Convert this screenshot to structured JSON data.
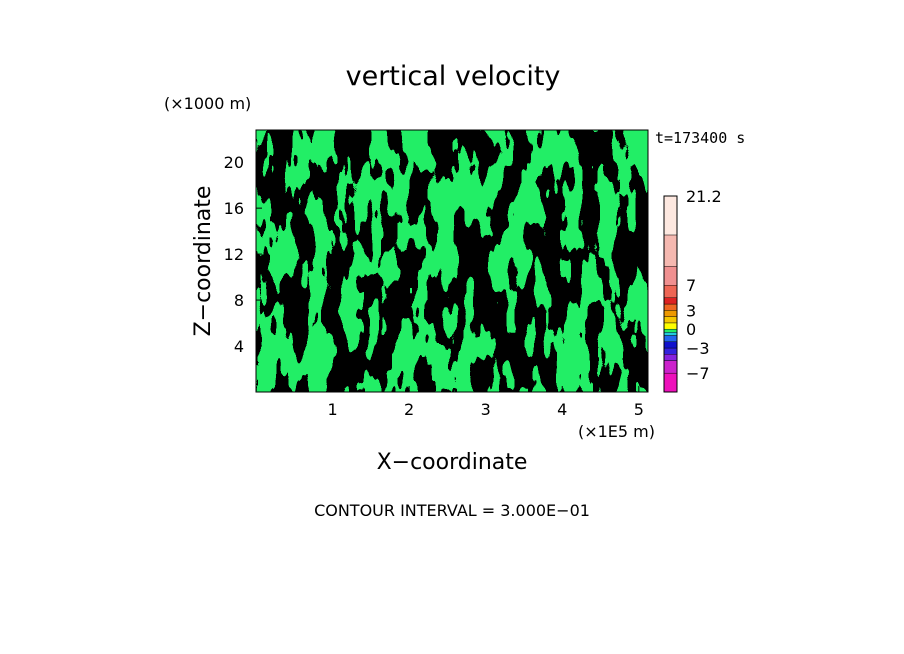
{
  "chart_data": {
    "type": "heatmap",
    "title": "vertical velocity",
    "xlabel": "X−coordinate",
    "ylabel": "Z−coordinate",
    "x_unit_label": "(×1E5 m)",
    "y_unit_label": "(×1000 m)",
    "time_label": "t=173400 s",
    "contour_interval_label": "CONTOUR INTERVAL = 3.000E−01",
    "xlim": [
      0,
      5.12
    ],
    "ylim": [
      0,
      22.8
    ],
    "x_ticks": [
      1,
      2,
      3,
      4,
      5
    ],
    "x_tick_labels": [
      "1",
      "2",
      "3",
      "4",
      "5"
    ],
    "y_ticks": [
      4,
      8,
      12,
      16,
      20
    ],
    "y_tick_labels": [
      "4",
      "8",
      "12",
      "16",
      "20"
    ],
    "field_colors": {
      "positive": "#ffff00",
      "negative": "#22ee66"
    },
    "colorbar": {
      "bands": [
        {
          "from": -10.0,
          "to": -7.0,
          "color": "#ee11bb"
        },
        {
          "from": -7.0,
          "to": -5.0,
          "color": "#cc22cc"
        },
        {
          "from": -5.0,
          "to": -4.0,
          "color": "#8822dd"
        },
        {
          "from": -4.0,
          "to": -3.0,
          "color": "#3322dd"
        },
        {
          "from": -3.0,
          "to": -2.0,
          "color": "#1111cc"
        },
        {
          "from": -2.0,
          "to": -1.0,
          "color": "#2266ee"
        },
        {
          "from": -1.0,
          "to": -0.5,
          "color": "#22ccdd"
        },
        {
          "from": -0.5,
          "to": 0.0,
          "color": "#22ee66"
        },
        {
          "from": 0.0,
          "to": 1.0,
          "color": "#ffff00"
        },
        {
          "from": 1.0,
          "to": 2.0,
          "color": "#f5c800"
        },
        {
          "from": 2.0,
          "to": 3.0,
          "color": "#ee9900"
        },
        {
          "from": 3.0,
          "to": 4.0,
          "color": "#ee6622"
        },
        {
          "from": 4.0,
          "to": 5.0,
          "color": "#dd2222"
        },
        {
          "from": 5.0,
          "to": 7.0,
          "color": "#ee6655"
        },
        {
          "from": 7.0,
          "to": 10.0,
          "color": "#f09090"
        },
        {
          "from": 10.0,
          "to": 15.0,
          "color": "#f5b8b0"
        },
        {
          "from": 15.0,
          "to": 21.2,
          "color": "#fde8e0"
        }
      ],
      "labels": [
        {
          "value": 21.2,
          "text": "21.2"
        },
        {
          "value": 7,
          "text": "7"
        },
        {
          "value": 3,
          "text": "3"
        },
        {
          "value": 0,
          "text": "0"
        },
        {
          "value": -3,
          "text": "−3"
        },
        {
          "value": -7,
          "text": "−7"
        }
      ]
    }
  }
}
